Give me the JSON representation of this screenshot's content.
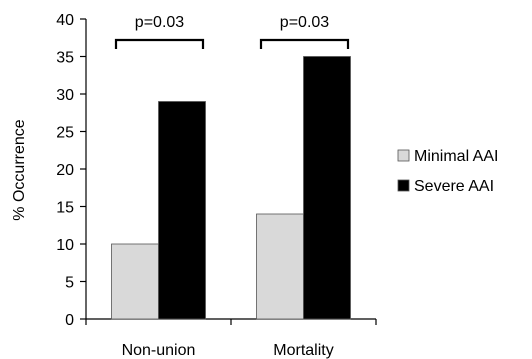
{
  "chart_data": {
    "type": "bar",
    "categories": [
      "Non-union",
      "Mortality"
    ],
    "series": [
      {
        "name": "Minimal AAI",
        "values": [
          10,
          14
        ],
        "color": "#d9d9d9"
      },
      {
        "name": "Severe AAI",
        "values": [
          29,
          35
        ],
        "color": "#000000"
      }
    ],
    "ylabel": "% Occurrence",
    "ylim": [
      0,
      40
    ],
    "yticks": [
      0,
      5,
      10,
      15,
      20,
      25,
      30,
      35,
      40
    ],
    "grid": false,
    "legend_position": "right",
    "annotations": [
      {
        "category": "Non-union",
        "text": "p=0.03"
      },
      {
        "category": "Mortality",
        "text": "p=0.03"
      }
    ]
  }
}
